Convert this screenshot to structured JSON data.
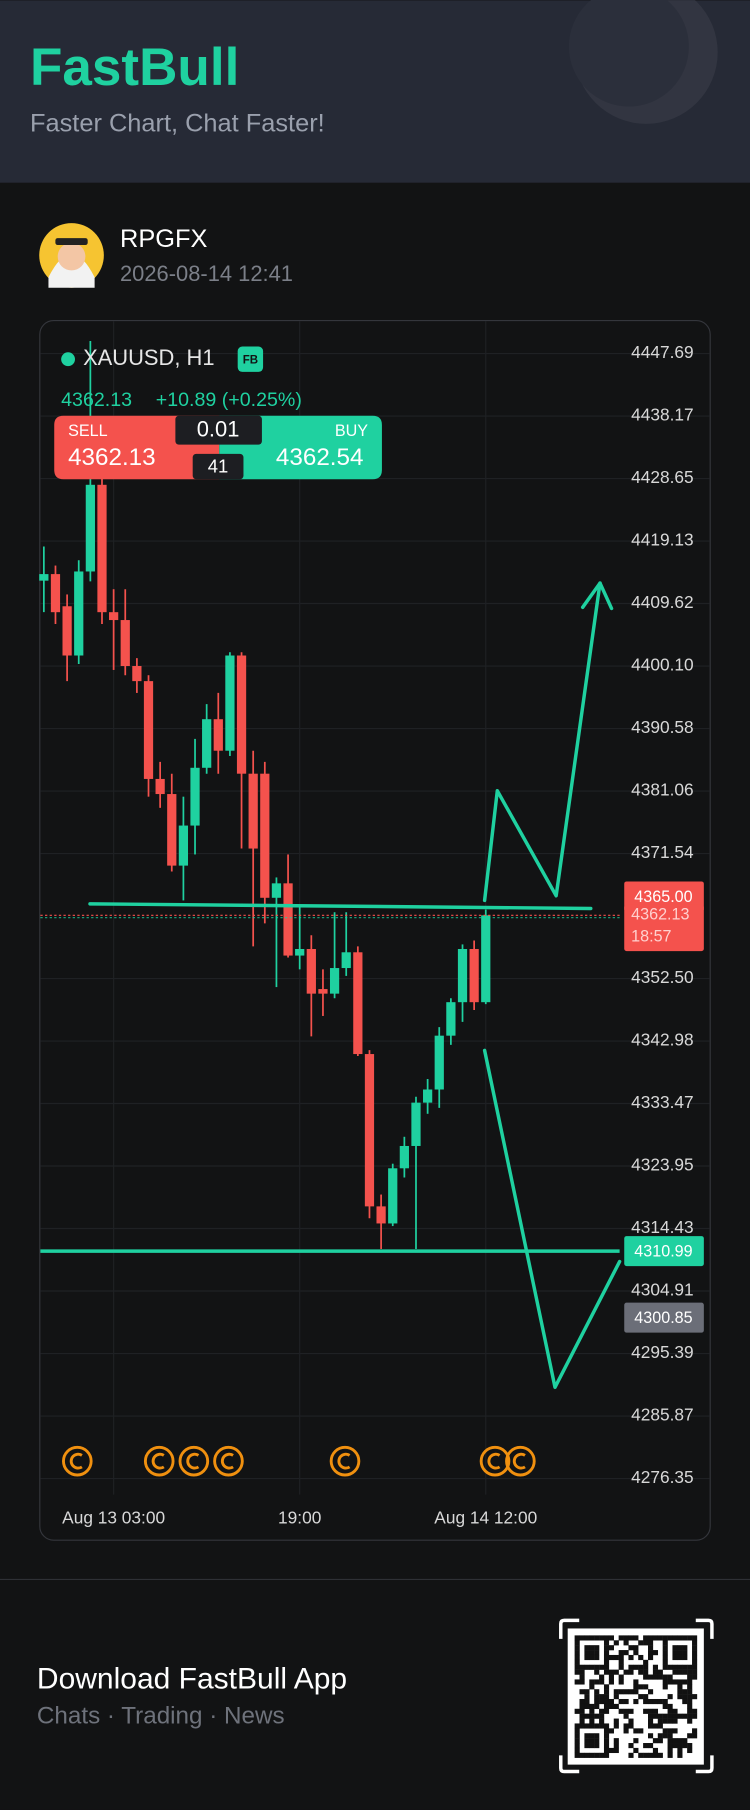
{
  "header": {
    "title": "FastBull",
    "subtitle": "Faster Chart, Chat Faster!"
  },
  "post": {
    "author": "RPGFX",
    "timestamp": "2026-08-14 12:41"
  },
  "chart_data": {
    "type": "candlestick",
    "symbol": "XAUUSD, H1",
    "badge": "FB",
    "last_price": "4362.13",
    "change": "+10.89 (+0.25%)",
    "order": {
      "sell_label": "SELL",
      "sell_price": "4362.13",
      "buy_label": "BUY",
      "buy_price": "4362.54",
      "lot": "0.01",
      "spread": "41"
    },
    "categories": [
      null,
      null,
      null,
      null,
      null,
      null,
      "Aug 13 03:00",
      null,
      null,
      null,
      null,
      null,
      null,
      null,
      null,
      null,
      null,
      null,
      null,
      null,
      null,
      null,
      "19:00",
      null,
      null,
      null,
      null,
      null,
      null,
      null,
      null,
      null,
      null,
      null,
      null,
      null,
      null,
      null,
      "Aug 14 12:00"
    ],
    "open": [
      4413.1,
      4414.1,
      4409.2,
      4401.7,
      4414.5,
      4427.7,
      4408.3,
      4407.1,
      4400.1,
      4397.8,
      4382.9,
      4380.6,
      4369.7,
      4375.8,
      4384.6,
      4392,
      4387.2,
      4401.7,
      4383.7,
      4383.7,
      4364.8,
      4367,
      4356,
      4357,
      4350.9,
      4350.2,
      4354.1,
      4356.5,
      4341,
      4317.8,
      4315.2,
      4323.6,
      4327,
      4333.6,
      4335.6,
      4343.8,
      4348.9,
      4357,
      4348.9
    ],
    "high": [
      4418.3,
      4415.4,
      4411,
      4416.2,
      4449.6,
      4429.4,
      4411.8,
      4411.8,
      4401.3,
      4398.7,
      4385.5,
      4383.7,
      4380.2,
      4389,
      4394.3,
      4396,
      4402.2,
      4402.2,
      4387.2,
      4385.5,
      4367.9,
      4371.4,
      4363.5,
      4359.1,
      4353.9,
      4362.6,
      4362.6,
      4357.4,
      4341.6,
      4319.6,
      4324.3,
      4328.4,
      4334.5,
      4337.2,
      4345.1,
      4349.5,
      4357.7,
      4358.3,
      4363
    ],
    "low": [
      4408.3,
      4406.5,
      4397.8,
      4400.4,
      4413,
      4406.5,
      4399.5,
      4398.7,
      4396,
      4380.2,
      4378.5,
      4368.8,
      4364.4,
      4371.4,
      4383.7,
      4383.7,
      4386.4,
      4372.3,
      4357.4,
      4360.9,
      4351.2,
      4355.7,
      4353.9,
      4343.7,
      4346.8,
      4349.5,
      4352.9,
      4340.7,
      4316,
      4311.3,
      4314.8,
      4322.2,
      4311.3,
      4331.9,
      4332.8,
      4342.4,
      4345.9,
      4347.7,
      4348.6
    ],
    "close": [
      4414.1,
      4408.3,
      4401.7,
      4414.5,
      4427.7,
      4408.3,
      4407.1,
      4400.1,
      4397.8,
      4382.9,
      4380.6,
      4369.7,
      4375.8,
      4384.6,
      4392,
      4387.2,
      4401.7,
      4383.7,
      4372.3,
      4364.8,
      4367,
      4356,
      4357,
      4350.2,
      4350.2,
      4354.1,
      4356.5,
      4341,
      4317.8,
      4315.2,
      4323.6,
      4327,
      4333.6,
      4335.6,
      4343.8,
      4348.9,
      4357,
      4348.9,
      4362.13
    ],
    "up_color": "#1fd1a0",
    "down_color": "#f4524d",
    "ylim": [
      4273.9,
      4452.8
    ],
    "yticks": [
      4447.69,
      4438.17,
      4428.65,
      4419.13,
      4409.62,
      {
        "value": 4400.1,
        "label": "4400.10"
      },
      4390.58,
      4381.06,
      4371.54,
      {
        "value": 4352.5,
        "label": "4352.50"
      },
      4342.98,
      4333.47,
      4323.95,
      4314.43,
      4304.91,
      4295.39,
      4285.87,
      4276.35
    ],
    "grid": true,
    "price_tags": [
      {
        "value": 4365,
        "label": "4365.00",
        "color": "#f4524d"
      },
      {
        "value": 4362.13,
        "label": "4362.13",
        "countdown": "18:57",
        "color": "#f4524d"
      },
      {
        "value": 4310.99,
        "label": "4310.99",
        "color": "#1fd1a0"
      },
      {
        "value": 4300.85,
        "label": "4300.85",
        "color": "#6b6e78"
      }
    ]
  },
  "footer": {
    "title": "Download FastBull App",
    "subtitle": "Chats · Trading · News"
  }
}
